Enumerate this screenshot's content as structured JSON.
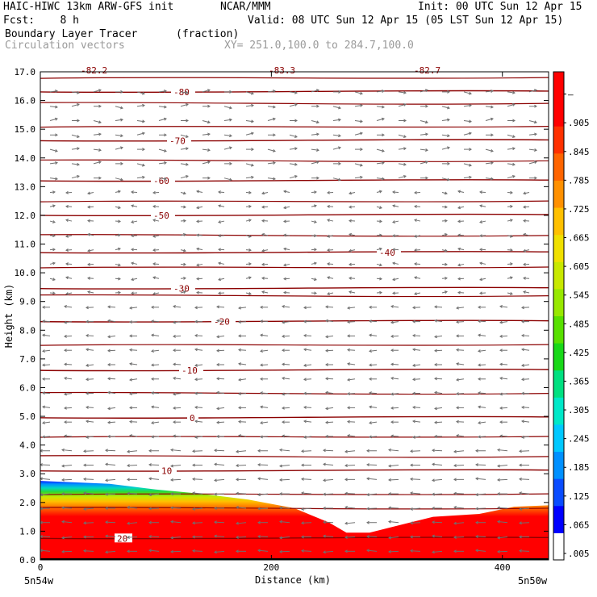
{
  "header": {
    "model": "HAIC-HIWC 13km ARW-GFS init",
    "org": "NCAR/MMM",
    "init": "Init: 00 UTC Sun 12 Apr 15",
    "fcst": "Fcst:    8 h",
    "valid": "Valid: 08 UTC Sun 12 Apr 15 (05 LST Sun 12 Apr 15)",
    "field": "Boundary Layer Tracer",
    "units": "(fraction)",
    "vectors": "Circulation vectors",
    "xy": "XY= 251.0,100.0 to 284.7,100.0"
  },
  "chart_data": {
    "type": "cross-section",
    "ylabel": "Height (km)",
    "xlabel": "Distance (km)",
    "ylim": [
      0,
      17
    ],
    "xlim": [
      0,
      440
    ],
    "y_ticks": [
      "0.0",
      "1.0",
      "2.0",
      "3.0",
      "4.0",
      "5.0",
      "6.0",
      "7.0",
      "8.0",
      "9.0",
      "10.0",
      "11.0",
      "12.0",
      "13.0",
      "14.0",
      "15.0",
      "16.0",
      "17.0"
    ],
    "x_ticks": [
      0,
      200,
      400
    ],
    "x_tick_labels": [
      "0",
      "200",
      "400"
    ],
    "x_end_labels": [
      "5n54w",
      "5n50w"
    ],
    "colorbar_labels": [
      ".005",
      ".065",
      ".125",
      ".185",
      ".245",
      ".305",
      ".365",
      ".425",
      ".485",
      ".545",
      ".605",
      ".665",
      ".725",
      ".785",
      ".845",
      ".905",
      "–"
    ],
    "colorbar_colors": [
      "#ffffff",
      "#0000ff",
      "#0a4cff",
      "#0090ff",
      "#00c8ff",
      "#00e8c8",
      "#00e080",
      "#18d818",
      "#58e000",
      "#98e800",
      "#c8e800",
      "#f0e000",
      "#ffc000",
      "#ff9000",
      "#ff6400",
      "#ff3000",
      "#ff0000",
      "#ff0000"
    ],
    "temperature_contours": [
      {
        "label": "20",
        "height": 0.75,
        "label_x": 95
      },
      {
        "label": "10",
        "height": 3.1,
        "label_x": 150
      },
      {
        "label": "0",
        "height": 4.95,
        "label_x": 185
      },
      {
        "label": "-10",
        "height": 6.6,
        "label_x": 175
      },
      {
        "label": "-20",
        "height": 8.3,
        "label_x": 215
      },
      {
        "label": "-30",
        "height": 9.45,
        "label_x": 165
      },
      {
        "label": "-40",
        "height": 10.7,
        "label_x": 420
      },
      {
        "label": "-50",
        "height": 12.0,
        "label_x": 140
      },
      {
        "label": "-60",
        "height": 13.2,
        "label_x": 140
      },
      {
        "label": "-70",
        "height": 14.6,
        "label_x": 160
      },
      {
        "label": "-80",
        "height": 16.3,
        "label_x": 165
      }
    ],
    "top_labels": [
      "-82.2",
      "-83.3",
      "-82.7"
    ],
    "tracer_top_profile": [
      {
        "x": 0,
        "h": 2.75
      },
      {
        "x": 60,
        "h": 2.65
      },
      {
        "x": 100,
        "h": 2.45
      },
      {
        "x": 140,
        "h": 2.3
      },
      {
        "x": 180,
        "h": 2.1
      },
      {
        "x": 220,
        "h": 1.8
      },
      {
        "x": 250,
        "h": 1.3
      },
      {
        "x": 265,
        "h": 0.95
      },
      {
        "x": 285,
        "h": 0.95
      },
      {
        "x": 310,
        "h": 1.2
      },
      {
        "x": 340,
        "h": 1.5
      },
      {
        "x": 380,
        "h": 1.6
      },
      {
        "x": 410,
        "h": 1.85
      },
      {
        "x": 440,
        "h": 1.9
      }
    ],
    "grid": false,
    "legend": "colorbar-right"
  }
}
